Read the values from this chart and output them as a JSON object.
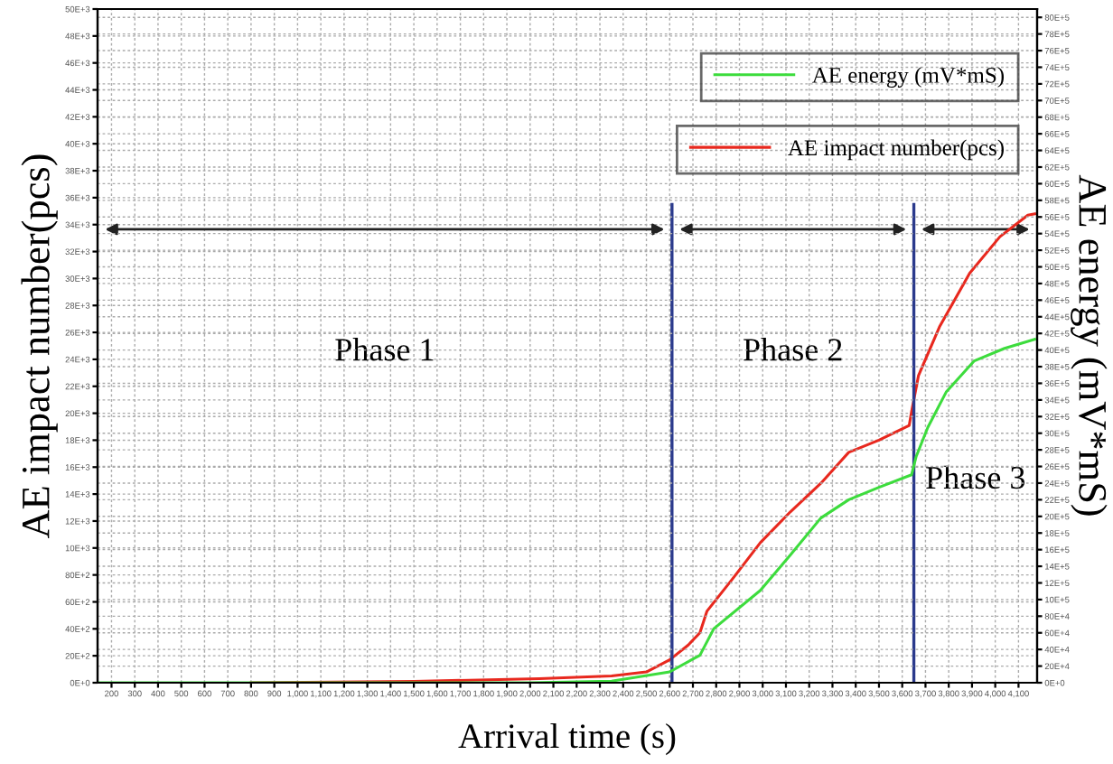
{
  "chart_data": {
    "type": "line",
    "xlabel": "Arrival time (s)",
    "ylabel": "AE impact number(pcs)",
    "y2label": "AE energy (mV*mS)",
    "xlim": [
      140,
      4180
    ],
    "xticks": [
      200,
      300,
      400,
      500,
      600,
      700,
      800,
      900,
      {
        "value": 1000,
        "label": "1,000"
      },
      {
        "value": 1100,
        "label": "1,100"
      },
      {
        "value": 1200,
        "label": "1,200"
      },
      {
        "value": 1300,
        "label": "1,300"
      },
      {
        "value": 1400,
        "label": "1,400"
      },
      {
        "value": 1500,
        "label": "1,500"
      },
      {
        "value": 1600,
        "label": "1,600"
      },
      {
        "value": 1700,
        "label": "1,700"
      },
      {
        "value": 1800,
        "label": "1,800"
      },
      {
        "value": 1900,
        "label": "1,900"
      },
      {
        "value": 2000,
        "label": "2,000"
      },
      {
        "value": 2100,
        "label": "2,100"
      },
      {
        "value": 2200,
        "label": "2,200"
      },
      {
        "value": 2300,
        "label": "2,300"
      },
      {
        "value": 2400,
        "label": "2,400"
      },
      {
        "value": 2500,
        "label": "2,500"
      },
      {
        "value": 2600,
        "label": "2,600"
      },
      {
        "value": 2700,
        "label": "2,700"
      },
      {
        "value": 2800,
        "label": "2,800"
      },
      {
        "value": 2900,
        "label": "2,900"
      },
      {
        "value": 3000,
        "label": "3,000"
      },
      {
        "value": 3100,
        "label": "3,100"
      },
      {
        "value": 3200,
        "label": "3,200"
      },
      {
        "value": 3300,
        "label": "3,300"
      },
      {
        "value": 3400,
        "label": "3,400"
      },
      {
        "value": 3500,
        "label": "3,500"
      },
      {
        "value": 3600,
        "label": "3,600"
      },
      {
        "value": 3700,
        "label": "3,700"
      },
      {
        "value": 3800,
        "label": "3,800"
      },
      {
        "value": 3900,
        "label": "3,900"
      },
      {
        "value": 4000,
        "label": "4,000"
      },
      {
        "value": 4100,
        "label": "4,100"
      }
    ],
    "ylim": [
      0,
      50000
    ],
    "yticks": [
      {
        "value": 0,
        "label": "0E+0"
      },
      {
        "value": 2000,
        "label": "20E+2"
      },
      {
        "value": 4000,
        "label": "40E+2"
      },
      {
        "value": 6000,
        "label": "60E+2"
      },
      {
        "value": 8000,
        "label": "80E+2"
      },
      {
        "value": 10000,
        "label": "10E+3"
      },
      {
        "value": 12000,
        "label": "12E+3"
      },
      {
        "value": 14000,
        "label": "14E+3"
      },
      {
        "value": 16000,
        "label": "16E+3"
      },
      {
        "value": 18000,
        "label": "18E+3"
      },
      {
        "value": 20000,
        "label": "20E+3"
      },
      {
        "value": 22000,
        "label": "22E+3"
      },
      {
        "value": 24000,
        "label": "24E+3"
      },
      {
        "value": 26000,
        "label": "26E+3"
      },
      {
        "value": 28000,
        "label": "28E+3"
      },
      {
        "value": 30000,
        "label": "30E+3"
      },
      {
        "value": 32000,
        "label": "32E+3"
      },
      {
        "value": 34000,
        "label": "34E+3"
      },
      {
        "value": 36000,
        "label": "36E+3"
      },
      {
        "value": 38000,
        "label": "38E+3"
      },
      {
        "value": 40000,
        "label": "40E+3"
      },
      {
        "value": 42000,
        "label": "42E+3"
      },
      {
        "value": 44000,
        "label": "44E+3"
      },
      {
        "value": 46000,
        "label": "46E+3"
      },
      {
        "value": 48000,
        "label": "48E+3"
      },
      {
        "value": 50000,
        "label": "50E+3"
      }
    ],
    "y2lim": [
      0,
      8100000
    ],
    "y2ticks": [
      {
        "value": 0,
        "label": "0E+0"
      },
      {
        "value": 200000,
        "label": "20E+4"
      },
      {
        "value": 400000,
        "label": "40E+4"
      },
      {
        "value": 600000,
        "label": "60E+4"
      },
      {
        "value": 800000,
        "label": "80E+4"
      },
      {
        "value": 1000000,
        "label": "10E+5"
      },
      {
        "value": 1200000,
        "label": "12E+5"
      },
      {
        "value": 1400000,
        "label": "14E+5"
      },
      {
        "value": 1600000,
        "label": "16E+5"
      },
      {
        "value": 1800000,
        "label": "18E+5"
      },
      {
        "value": 2000000,
        "label": "20E+5"
      },
      {
        "value": 2200000,
        "label": "22E+5"
      },
      {
        "value": 2400000,
        "label": "24E+5"
      },
      {
        "value": 2600000,
        "label": "26E+5"
      },
      {
        "value": 2800000,
        "label": "28E+5"
      },
      {
        "value": 3000000,
        "label": "30E+5"
      },
      {
        "value": 3200000,
        "label": "32E+5"
      },
      {
        "value": 3400000,
        "label": "34E+5"
      },
      {
        "value": 3600000,
        "label": "36E+5"
      },
      {
        "value": 3800000,
        "label": "38E+5"
      },
      {
        "value": 4000000,
        "label": "40E+5"
      },
      {
        "value": 4200000,
        "label": "42E+5"
      },
      {
        "value": 4400000,
        "label": "44E+5"
      },
      {
        "value": 4600000,
        "label": "46E+5"
      },
      {
        "value": 4800000,
        "label": "48E+5"
      },
      {
        "value": 5000000,
        "label": "50E+5"
      },
      {
        "value": 5200000,
        "label": "52E+5"
      },
      {
        "value": 5400000,
        "label": "54E+5"
      },
      {
        "value": 5600000,
        "label": "56E+5"
      },
      {
        "value": 5800000,
        "label": "58E+5"
      },
      {
        "value": 6000000,
        "label": "60E+5"
      },
      {
        "value": 6200000,
        "label": "62E+5"
      },
      {
        "value": 6400000,
        "label": "64E+5"
      },
      {
        "value": 6600000,
        "label": "66E+5"
      },
      {
        "value": 6800000,
        "label": "68E+5"
      },
      {
        "value": 7000000,
        "label": "70E+5"
      },
      {
        "value": 7200000,
        "label": "72E+5"
      },
      {
        "value": 7400000,
        "label": "74E+5"
      },
      {
        "value": 7600000,
        "label": "76E+5"
      },
      {
        "value": 7800000,
        "label": "78E+5"
      },
      {
        "value": 8000000,
        "label": "80E+5"
      }
    ],
    "series": [
      {
        "name": "AE energy (mV*mS)",
        "color": "#3ddc3d",
        "axis": "y2",
        "x": [
          140,
          800,
          1500,
          2000,
          2350,
          2600,
          2730,
          2790,
          2990,
          3120,
          3250,
          3370,
          3500,
          3640,
          3660,
          3710,
          3790,
          3910,
          4040,
          4170
        ],
        "values": [
          0,
          0,
          0,
          0,
          20000,
          130000,
          330000,
          650000,
          1110000,
          1540000,
          1980000,
          2200000,
          2350000,
          2500000,
          2720000,
          3070000,
          3500000,
          3870000,
          4020000,
          4130000
        ]
      },
      {
        "name": "AE impact number(pcs)",
        "color": "#e8281e",
        "axis": "y",
        "x": [
          800,
          1500,
          2040,
          2350,
          2500,
          2600,
          2680,
          2730,
          2760,
          2870,
          2990,
          3120,
          3250,
          3370,
          3500,
          3630,
          3640,
          3670,
          3760,
          3890,
          4020,
          4140,
          4170
        ],
        "values": [
          0,
          100,
          300,
          500,
          800,
          1700,
          2800,
          3700,
          5300,
          7700,
          10400,
          12700,
          14800,
          17100,
          18000,
          19100,
          20100,
          22800,
          26400,
          30400,
          33100,
          34700,
          34800
        ]
      }
    ],
    "ref_lines": [
      {
        "axis": "x",
        "value": 2610,
        "color": "#2b3a8c"
      },
      {
        "axis": "x",
        "value": 3650,
        "color": "#2b3a8c"
      }
    ],
    "annotations": [
      "Phase 1",
      "Phase 2",
      "Phase 3"
    ],
    "grid": true,
    "legend": "top right",
    "line_style": "solid",
    "marker": "none"
  }
}
